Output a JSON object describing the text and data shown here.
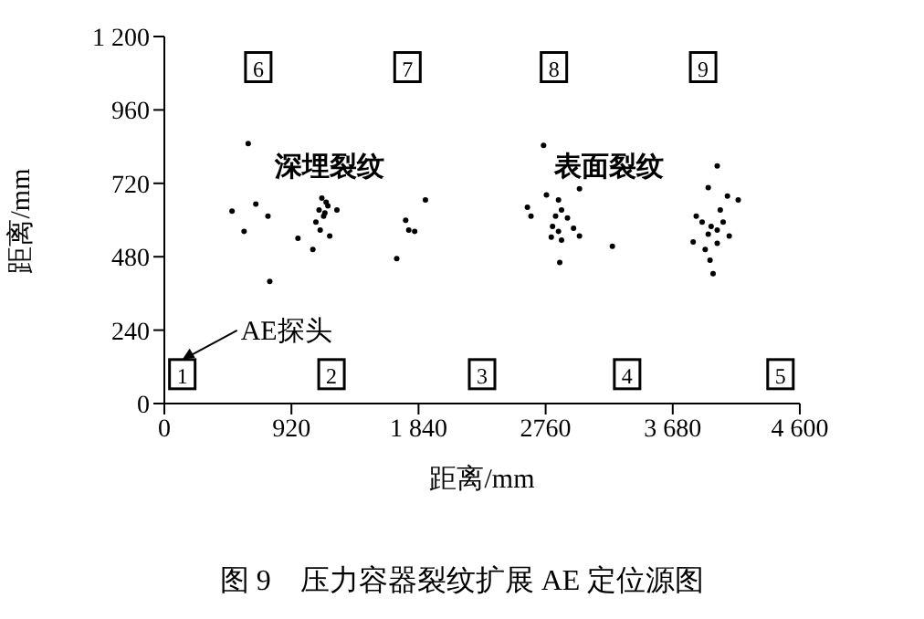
{
  "chart_data": {
    "type": "scatter",
    "title": "图 9　压力容器裂纹扩展 AE 定位源图",
    "xlabel": "距离/mm",
    "ylabel": "距离/mm",
    "xlim": [
      0,
      4600
    ],
    "xticks": [
      0,
      920,
      {
        "value": 1840,
        "label": "1 840"
      },
      2760,
      {
        "value": 3680,
        "label": "3 680"
      },
      {
        "value": 4600,
        "label": "4 600"
      }
    ],
    "ylim": [
      0,
      1200
    ],
    "yticks": [
      0,
      240,
      480,
      720,
      960,
      {
        "value": 1200,
        "label": "1 200"
      }
    ],
    "annotations": [
      "深埋裂纹",
      "表面裂纹",
      "1",
      "2",
      "3",
      "4",
      "5",
      "6",
      "7",
      "8",
      "9"
    ],
    "series": [
      {
        "marker": "circle",
        "color": "#000000",
        "x": [
          607,
          490,
          577,
          662,
          750,
          763,
          967,
          1140,
          1171,
          1184,
          1120,
          1153,
          1097,
          1128,
          1197,
          1075,
          1249,
          1162,
          1747,
          1769,
          1812,
          1890,
          1682,
          2745,
          2628,
          2654,
          2766,
          2853,
          2875,
          2832,
          2918,
          2810,
          2853,
          2962,
          2801,
          2875,
          3005,
          2862,
          3005,
          3243,
          4002,
          3937,
          3850,
          3893,
          3958,
          4002,
          3937,
          4045,
          3828,
          4002,
          4089,
          4024,
          4076,
          4154,
          3950,
          3972,
          3915
        ],
        "values": [
          850,
          629,
          563,
          652,
          613,
          399,
          540,
          672,
          658,
          646,
          633,
          613,
          593,
          567,
          548,
          504,
          633,
          623,
          599,
          567,
          563,
          666,
          474,
          844,
          642,
          613,
          682,
          666,
          633,
          613,
          607,
          579,
          563,
          573,
          544,
          534,
          548,
          461,
          702,
          514,
          777,
          706,
          613,
          593,
          579,
          567,
          554,
          593,
          528,
          524,
          548,
          633,
          678,
          666,
          469,
          425,
          504
        ]
      },
      {
        "name": "AE探头",
        "marker": "square",
        "color": "#000000",
        "x": [
          130,
          1210,
          2300,
          3350,
          4460,
          680,
          1760,
          2820,
          3900
        ],
        "values": [
          96,
          96,
          96,
          96,
          96,
          1100,
          1100,
          1100,
          1100
        ]
      }
    ]
  }
}
